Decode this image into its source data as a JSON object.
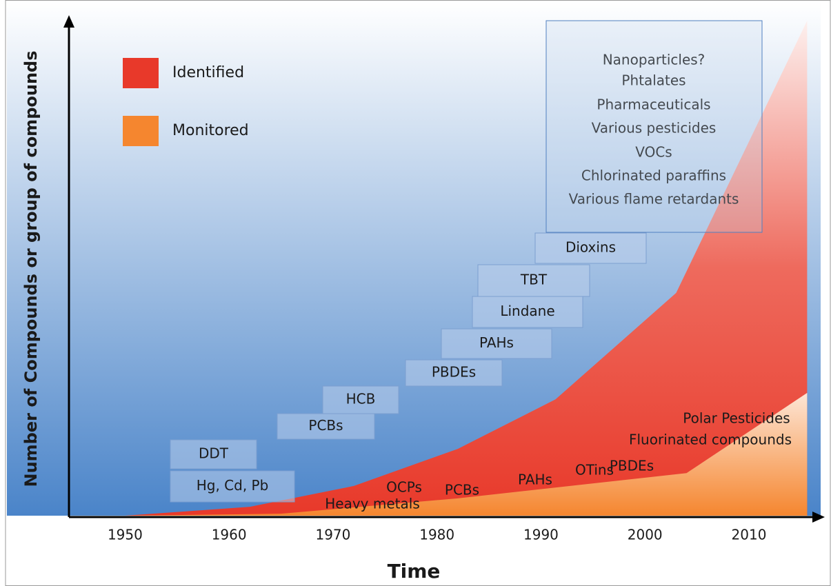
{
  "chart_data": {
    "type": "area",
    "x_label": "Time",
    "y_label": "Number of Compounds or group of compounds",
    "xlim": [
      1944.6,
      2016.9
    ],
    "ylim": [
      0,
      100
    ],
    "xticks": [
      1950,
      1960,
      1970,
      1980,
      1990,
      2000,
      2010
    ],
    "series": [
      {
        "name": "Identified",
        "color": "#e8392a",
        "x": [
          1950,
          1962,
          1972,
          1982,
          1991.4,
          2003,
          2015.6
        ],
        "values": [
          0,
          1.8,
          6,
          13.5,
          23.5,
          45,
          100
        ]
      },
      {
        "name": "Monitored",
        "color": "#f5862f",
        "x": [
          1950,
          1965,
          1982,
          2004,
          2015.6
        ],
        "values": [
          0,
          0.4,
          3.5,
          8.6,
          24.8
        ]
      }
    ],
    "identified_compounds": [
      "DDT",
      "Hg, Cd, Pb",
      "PCBs",
      "HCB",
      "PBDEs",
      "PAHs",
      "Lindane",
      "TBT",
      "Dioxins"
    ],
    "emerging_compounds": [
      "Nanoparticles?",
      "Phtalates",
      "Pharmaceuticals",
      "Various pesticides",
      "VOCs",
      "Chlorinated paraffins",
      "Various flame retardants"
    ],
    "monitored_compounds": [
      "OCPs",
      "Heavy metals",
      "PCBs",
      "PAHs",
      "OTins",
      "PBDEs",
      "Polar Pesticides",
      "Fluorinated compounds"
    ]
  }
}
